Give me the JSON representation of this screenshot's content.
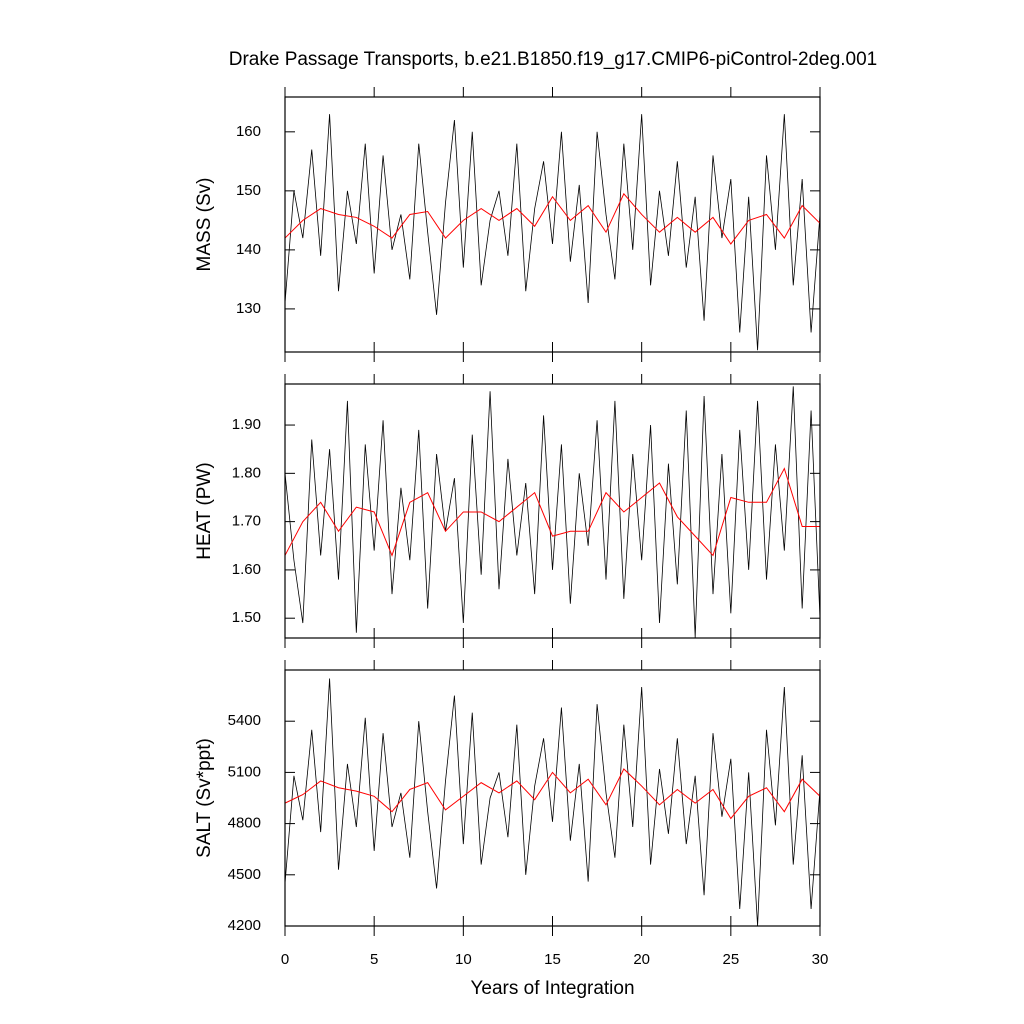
{
  "title": "Drake Passage Transports, b.e21.B1850.f19_g17.CMIP6-piControl-2deg.001",
  "chart_data": [
    {
      "type": "line",
      "ylabel": "MASS (Sv)",
      "xlim": [
        0,
        30
      ],
      "xticks": [
        0,
        5,
        10,
        15,
        20,
        25,
        30
      ],
      "ylim": [
        122.7,
        165.9
      ],
      "yticks": [
        130,
        140,
        150,
        160
      ],
      "series": [
        {
          "color": "#000000",
          "x": [
            0,
            0.5,
            1,
            1.5,
            2,
            2.5,
            3,
            3.5,
            4,
            4.5,
            5,
            5.5,
            6,
            6.5,
            7,
            7.5,
            8,
            8.5,
            9,
            9.5,
            10,
            10.5,
            11,
            11.5,
            12,
            12.5,
            13,
            13.5,
            14,
            14.5,
            15,
            15.5,
            16,
            16.5,
            17,
            17.5,
            18,
            18.5,
            19,
            19.5,
            20,
            20.5,
            21,
            21.5,
            22,
            22.5,
            23,
            23.5,
            24,
            24.5,
            25,
            25.5,
            26,
            26.5,
            27,
            27.5,
            28,
            28.5,
            29,
            29.5,
            30
          ],
          "values": [
            131,
            150,
            142,
            157,
            139,
            163,
            133,
            150,
            141,
            158,
            136,
            156,
            140,
            146,
            135,
            158,
            143,
            129,
            148,
            162,
            137,
            160,
            134,
            145,
            150,
            139,
            158,
            133,
            147,
            155,
            141,
            160,
            138,
            151,
            131,
            160,
            146,
            135,
            158,
            140,
            163,
            134,
            150,
            139,
            155,
            137,
            149,
            128,
            156,
            142,
            152,
            126,
            149,
            123,
            156,
            140,
            163,
            134,
            152,
            126,
            146
          ]
        },
        {
          "color": "#ff0000",
          "x": [
            0,
            1,
            2,
            3,
            4,
            5,
            6,
            7,
            8,
            9,
            10,
            11,
            12,
            13,
            14,
            15,
            16,
            17,
            18,
            19,
            20,
            21,
            22,
            23,
            24,
            25,
            26,
            27,
            28,
            29,
            30
          ],
          "values": [
            142,
            145,
            147,
            146,
            145.5,
            144,
            142,
            146,
            146.5,
            142,
            145,
            147,
            145,
            147,
            144,
            149,
            145,
            147.5,
            143,
            149.5,
            146,
            143,
            145.5,
            143,
            145.5,
            141,
            145,
            146,
            142,
            147.5,
            144.5
          ]
        }
      ]
    },
    {
      "type": "line",
      "ylabel": "HEAT (PW)",
      "xlim": [
        0,
        30
      ],
      "xticks": [
        0,
        5,
        10,
        15,
        20,
        25,
        30
      ],
      "ylim": [
        1.459,
        1.985
      ],
      "yticks": [
        {
          "value": 1.5,
          "label": "1.50"
        },
        {
          "value": 1.6,
          "label": "1.60"
        },
        {
          "value": 1.7,
          "label": "1.70"
        },
        {
          "value": 1.8,
          "label": "1.80"
        },
        {
          "value": 1.9,
          "label": "1.90"
        }
      ],
      "series": [
        {
          "color": "#000000",
          "x": [
            0,
            0.5,
            1,
            1.5,
            2,
            2.5,
            3,
            3.5,
            4,
            4.5,
            5,
            5.5,
            6,
            6.5,
            7,
            7.5,
            8,
            8.5,
            9,
            9.5,
            10,
            10.5,
            11,
            11.5,
            12,
            12.5,
            13,
            13.5,
            14,
            14.5,
            15,
            15.5,
            16,
            16.5,
            17,
            17.5,
            18,
            18.5,
            19,
            19.5,
            20,
            20.5,
            21,
            21.5,
            22,
            22.5,
            23,
            23.5,
            24,
            24.5,
            25,
            25.5,
            26,
            26.5,
            27,
            27.5,
            28,
            28.5,
            29,
            29.5,
            30
          ],
          "values": [
            1.8,
            1.62,
            1.49,
            1.87,
            1.63,
            1.85,
            1.58,
            1.95,
            1.47,
            1.86,
            1.64,
            1.91,
            1.55,
            1.77,
            1.62,
            1.89,
            1.52,
            1.84,
            1.68,
            1.79,
            1.49,
            1.88,
            1.59,
            1.97,
            1.56,
            1.83,
            1.63,
            1.78,
            1.55,
            1.92,
            1.6,
            1.86,
            1.53,
            1.8,
            1.65,
            1.91,
            1.58,
            1.95,
            1.54,
            1.84,
            1.62,
            1.9,
            1.49,
            1.82,
            1.57,
            1.93,
            1.46,
            1.96,
            1.55,
            1.84,
            1.51,
            1.89,
            1.6,
            1.95,
            1.58,
            1.86,
            1.64,
            1.98,
            1.52,
            1.93,
            1.5
          ]
        },
        {
          "color": "#ff0000",
          "x": [
            0,
            1,
            2,
            3,
            4,
            5,
            6,
            7,
            8,
            9,
            10,
            11,
            12,
            13,
            14,
            15,
            16,
            17,
            18,
            19,
            20,
            21,
            22,
            23,
            24,
            25,
            26,
            27,
            28,
            29,
            30
          ],
          "values": [
            1.63,
            1.7,
            1.74,
            1.68,
            1.73,
            1.72,
            1.63,
            1.74,
            1.76,
            1.68,
            1.72,
            1.72,
            1.7,
            1.73,
            1.76,
            1.67,
            1.68,
            1.68,
            1.76,
            1.72,
            1.75,
            1.78,
            1.71,
            1.67,
            1.63,
            1.75,
            1.74,
            1.74,
            1.81,
            1.69,
            1.69
          ]
        }
      ]
    },
    {
      "type": "line",
      "ylabel": "SALT (Sv*ppt)",
      "xlabel": "Years of Integration",
      "xlim": [
        0,
        30
      ],
      "xticks": [
        0,
        5,
        10,
        15,
        20,
        25,
        30
      ],
      "ylim": [
        4200,
        5700
      ],
      "yticks": [
        4200,
        4500,
        4800,
        5100,
        5400
      ],
      "series": [
        {
          "color": "#000000",
          "x": [
            0,
            0.5,
            1,
            1.5,
            2,
            2.5,
            3,
            3.5,
            4,
            4.5,
            5,
            5.5,
            6,
            6.5,
            7,
            7.5,
            8,
            8.5,
            9,
            9.5,
            10,
            10.5,
            11,
            11.5,
            12,
            12.5,
            13,
            13.5,
            14,
            14.5,
            15,
            15.5,
            16,
            16.5,
            17,
            17.5,
            18,
            18.5,
            19,
            19.5,
            20,
            20.5,
            21,
            21.5,
            22,
            22.5,
            23,
            23.5,
            24,
            24.5,
            25,
            25.5,
            26,
            26.5,
            27,
            27.5,
            28,
            28.5,
            29,
            29.5,
            30
          ],
          "values": [
            4450,
            5080,
            4820,
            5350,
            4750,
            5650,
            4530,
            5150,
            4780,
            5420,
            4640,
            5330,
            4780,
            4980,
            4600,
            5400,
            4870,
            4420,
            5050,
            5550,
            4680,
            5450,
            4560,
            4950,
            5100,
            4720,
            5380,
            4500,
            5020,
            5300,
            4810,
            5480,
            4700,
            5150,
            4460,
            5500,
            4980,
            4600,
            5380,
            4780,
            5600,
            4560,
            5120,
            4740,
            5300,
            4680,
            5080,
            4380,
            5330,
            4840,
            5180,
            4300,
            5100,
            4200,
            5350,
            4790,
            5600,
            4560,
            5200,
            4300,
            5000
          ]
        },
        {
          "color": "#ff0000",
          "x": [
            0,
            1,
            2,
            3,
            4,
            5,
            6,
            7,
            8,
            9,
            10,
            11,
            12,
            13,
            14,
            15,
            16,
            17,
            18,
            19,
            20,
            21,
            22,
            23,
            24,
            25,
            26,
            27,
            28,
            29,
            30
          ],
          "values": [
            4920,
            4970,
            5050,
            5010,
            4990,
            4960,
            4870,
            5000,
            5040,
            4880,
            4960,
            5040,
            4980,
            5050,
            4940,
            5100,
            4980,
            5060,
            4910,
            5120,
            5020,
            4910,
            5000,
            4920,
            5000,
            4830,
            4960,
            5010,
            4870,
            5060,
            4960
          ]
        }
      ]
    }
  ]
}
